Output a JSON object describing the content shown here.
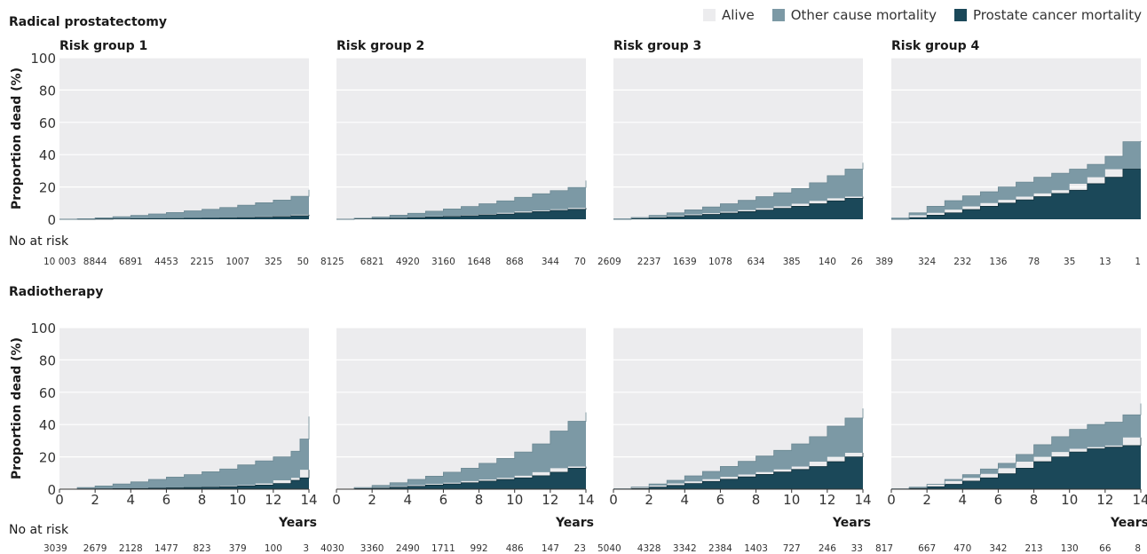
{
  "legend": {
    "alive": {
      "label": "Alive",
      "color": "#ececee"
    },
    "other": {
      "label": "Other cause mortality",
      "color": "#7c99a5"
    },
    "prostate": {
      "label": "Prostate cancer mortality",
      "color": "#1b4859"
    }
  },
  "common": {
    "y_axis_label": "Proportion dead (%)",
    "x_axis_label": "Years",
    "at_risk_label": "No at risk",
    "y_ticks": [
      0,
      20,
      40,
      60,
      80,
      100
    ],
    "x_ticks": [
      0,
      2,
      4,
      6,
      8,
      10,
      12,
      14
    ]
  },
  "chart_data": [
    {
      "type": "area",
      "section": "Radical prostatectomy",
      "title": "Risk group 1",
      "x": [
        0,
        1,
        2,
        3,
        4,
        5,
        6,
        7,
        8,
        9,
        10,
        11,
        12,
        13,
        14
      ],
      "series": [
        {
          "name": "Prostate cancer mortality",
          "values": [
            0,
            0,
            0.1,
            0.2,
            0.3,
            0.4,
            0.5,
            0.6,
            0.7,
            0.8,
            1,
            1.3,
            1.7,
            2.2,
            2.8
          ]
        },
        {
          "name": "Other cause mortality",
          "values": [
            0,
            0.3,
            0.8,
            1.4,
            2.1,
            2.9,
            3.7,
            4.6,
            5.5,
            6.5,
            7.7,
            8.9,
            10.2,
            12,
            15.5
          ]
        }
      ],
      "ylim": [
        0,
        100
      ],
      "xlim": [
        0,
        14
      ],
      "at_risk": [
        "10 003",
        "8844",
        "6891",
        "4453",
        "2215",
        "1007",
        "325",
        "50"
      ]
    },
    {
      "type": "area",
      "section": "Radical prostatectomy",
      "title": "Risk group 2",
      "x": [
        0,
        1,
        2,
        3,
        4,
        5,
        6,
        7,
        8,
        9,
        10,
        11,
        12,
        13,
        14
      ],
      "series": [
        {
          "name": "Prostate cancer mortality",
          "values": [
            0,
            0.2,
            0.4,
            0.7,
            1,
            1.4,
            1.8,
            2.2,
            2.7,
            3.2,
            4,
            4.8,
            5.5,
            6.2,
            7
          ]
        },
        {
          "name": "Other cause mortality",
          "values": [
            0,
            0.4,
            1,
            1.8,
            2.7,
            3.6,
            4.6,
            5.7,
            6.9,
            8.2,
            9.6,
            11,
            12.2,
            13.5,
            17
          ]
        }
      ],
      "ylim": [
        0,
        100
      ],
      "xlim": [
        0,
        14
      ],
      "at_risk": [
        "8125",
        "6821",
        "4920",
        "3160",
        "1648",
        "868",
        "344",
        "70"
      ]
    },
    {
      "type": "area",
      "section": "Radical prostatectomy",
      "title": "Risk group 3",
      "x": [
        0,
        1,
        2,
        3,
        4,
        5,
        6,
        7,
        8,
        9,
        10,
        11,
        12,
        13,
        14
      ],
      "series": [
        {
          "name": "Prostate cancer mortality",
          "values": [
            0,
            0.5,
            1,
            1.6,
            2.3,
            3,
            3.8,
            4.7,
            5.7,
            6.8,
            8,
            9.6,
            11.4,
            13,
            14
          ]
        },
        {
          "name": "Other cause mortality",
          "values": [
            0,
            0.6,
            1.4,
            2.4,
            3.5,
            4.6,
            5.8,
            7,
            8.3,
            9.6,
            11,
            13,
            15.6,
            18,
            21
          ]
        }
      ],
      "ylim": [
        0,
        100
      ],
      "xlim": [
        0,
        14
      ],
      "at_risk": [
        "2609",
        "2237",
        "1639",
        "1078",
        "634",
        "385",
        "140",
        "26"
      ]
    },
    {
      "type": "area",
      "section": "Radical prostatectomy",
      "title": "Risk group 4",
      "x": [
        0,
        1,
        2,
        3,
        4,
        5,
        6,
        7,
        8,
        9,
        10,
        11,
        12,
        13,
        14
      ],
      "series": [
        {
          "name": "Prostate cancer mortality",
          "values": [
            0,
            1,
            2.5,
            4,
            6,
            8,
            10,
            12,
            14,
            16,
            18,
            22,
            26,
            31,
            31
          ]
        },
        {
          "name": "Other cause mortality",
          "values": [
            0,
            3,
            5.5,
            7.5,
            8.5,
            9,
            10,
            11,
            12,
            12.5,
            13,
            12,
            13,
            17,
            17.5
          ]
        }
      ],
      "ylim": [
        0,
        100
      ],
      "xlim": [
        0,
        14
      ],
      "at_risk": [
        "389",
        "324",
        "232",
        "136",
        "78",
        "35",
        "13",
        "1"
      ]
    },
    {
      "type": "area",
      "section": "Radiotherapy",
      "title": "",
      "x": [
        0,
        1,
        2,
        3,
        4,
        5,
        6,
        7,
        8,
        9,
        10,
        11,
        12,
        13,
        13.5,
        14
      ],
      "series": [
        {
          "name": "Prostate cancer mortality",
          "values": [
            0,
            0.1,
            0.2,
            0.3,
            0.4,
            0.6,
            0.8,
            1,
            1.2,
            1.5,
            2,
            2.5,
            3.5,
            5.5,
            7,
            12
          ]
        },
        {
          "name": "Other cause mortality",
          "values": [
            0,
            0.9,
            1.8,
            2.9,
            4.1,
            5.4,
            6.7,
            8,
            9.6,
            11,
            13,
            15,
            16.5,
            18,
            24,
            33
          ]
        }
      ],
      "ylim": [
        0,
        100
      ],
      "xlim": [
        0,
        14
      ],
      "at_risk": [
        "3039",
        "2679",
        "2128",
        "1477",
        "823",
        "379",
        "100",
        "3"
      ]
    },
    {
      "type": "area",
      "section": "Radiotherapy",
      "title": "",
      "x": [
        0,
        1,
        2,
        3,
        4,
        5,
        6,
        7,
        8,
        9,
        10,
        11,
        12,
        13,
        14
      ],
      "series": [
        {
          "name": "Prostate cancer mortality",
          "values": [
            0,
            0.3,
            0.7,
            1.2,
            1.8,
            2.5,
            3.2,
            4,
            5,
            6,
            7,
            8.3,
            10.5,
            13,
            14
          ]
        },
        {
          "name": "Other cause mortality",
          "values": [
            0,
            0.7,
            1.6,
            2.8,
            4.2,
            5.5,
            7.3,
            9,
            11,
            13,
            16,
            19.7,
            25.5,
            29,
            33.5
          ]
        }
      ],
      "ylim": [
        0,
        100
      ],
      "xlim": [
        0,
        14
      ],
      "at_risk": [
        "4030",
        "3360",
        "2490",
        "1711",
        "992",
        "486",
        "147",
        "23"
      ]
    },
    {
      "type": "area",
      "section": "Radiotherapy",
      "title": "",
      "x": [
        0,
        1,
        2,
        3,
        4,
        5,
        6,
        7,
        8,
        9,
        10,
        11,
        12,
        13,
        14
      ],
      "series": [
        {
          "name": "Prostate cancer mortality",
          "values": [
            0,
            0.5,
            1.3,
            2.3,
            3.5,
            4.8,
            6.2,
            7.6,
            9.1,
            10.6,
            12.2,
            14,
            17,
            20,
            22.5
          ]
        },
        {
          "name": "Other cause mortality",
          "values": [
            0,
            0.8,
            1.9,
            3.2,
            4.7,
            6.2,
            7.9,
            9.6,
            11.4,
            13.4,
            15.8,
            18.5,
            22,
            24,
            27.5
          ]
        }
      ],
      "ylim": [
        0,
        100
      ],
      "xlim": [
        0,
        14
      ],
      "at_risk": [
        "5040",
        "4328",
        "3342",
        "2384",
        "1403",
        "727",
        "246",
        "33"
      ]
    },
    {
      "type": "area",
      "section": "Radiotherapy",
      "title": "",
      "x": [
        0,
        1,
        2,
        3,
        4,
        5,
        6,
        7,
        8,
        9,
        10,
        11,
        12,
        13,
        14
      ],
      "series": [
        {
          "name": "Prostate cancer mortality",
          "values": [
            0,
            0.5,
            1.5,
            3,
            5,
            7,
            9.5,
            13,
            17,
            20,
            23,
            25,
            26,
            27,
            32
          ]
        },
        {
          "name": "Other cause mortality",
          "values": [
            0,
            0.5,
            1.5,
            3,
            4,
            5.5,
            6.5,
            8.5,
            10.5,
            12.5,
            14,
            15,
            15.5,
            19,
            21
          ]
        }
      ],
      "ylim": [
        0,
        100
      ],
      "xlim": [
        0,
        14
      ],
      "at_risk": [
        "817",
        "667",
        "470",
        "342",
        "213",
        "130",
        "66",
        "8"
      ]
    }
  ]
}
